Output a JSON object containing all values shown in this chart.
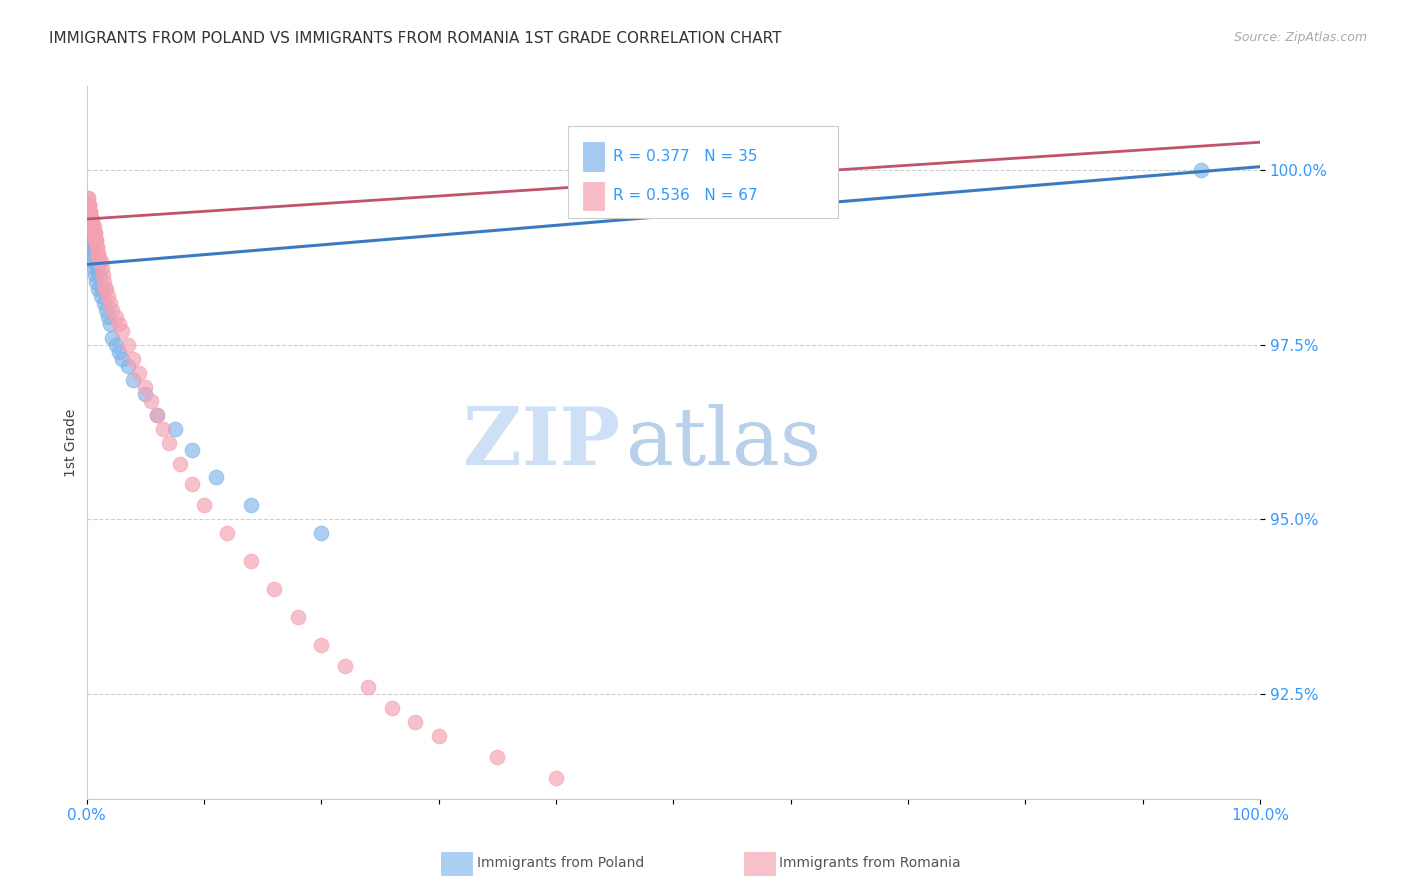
{
  "title": "IMMIGRANTS FROM POLAND VS IMMIGRANTS FROM ROMANIA 1ST GRADE CORRELATION CHART",
  "source": "Source: ZipAtlas.com",
  "ylabel": "1st Grade",
  "y_ticks": [
    92.5,
    95.0,
    97.5,
    100.0
  ],
  "y_tick_labels": [
    "92.5%",
    "95.0%",
    "97.5%",
    "100.0%"
  ],
  "poland_color": "#7eb4ea",
  "romania_color": "#f4a0b0",
  "poland_line_color": "#3a7abf",
  "romania_line_color": "#c0546a",
  "bg_color": "#ffffff",
  "grid_color": "#d0d0d0",
  "title_color": "#333333",
  "axis_tick_color": "#3399ff",
  "watermark_zip": "ZIP",
  "watermark_atlas": "atlas",
  "watermark_color_zip": "#c8dff5",
  "watermark_color_atlas": "#b8cfe8",
  "legend_poland_label": "R = 0.377   N = 35",
  "legend_romania_label": "R = 0.536   N = 67",
  "bottom_legend_poland": "Immigrants from Poland",
  "bottom_legend_romania": "Immigrants from Romania",
  "poland_scatter_x": [
    0.001,
    0.002,
    0.002,
    0.003,
    0.003,
    0.004,
    0.004,
    0.005,
    0.005,
    0.006,
    0.007,
    0.008,
    0.009,
    0.01,
    0.011,
    0.012,
    0.013,
    0.015,
    0.017,
    0.018,
    0.02,
    0.022,
    0.025,
    0.028,
    0.03,
    0.035,
    0.04,
    0.05,
    0.06,
    0.075,
    0.09,
    0.11,
    0.14,
    0.2,
    0.95
  ],
  "poland_scatter_y": [
    99.1,
    99.3,
    99.0,
    98.9,
    99.2,
    98.8,
    99.0,
    98.7,
    98.9,
    98.6,
    98.5,
    98.4,
    98.6,
    98.3,
    98.5,
    98.2,
    98.3,
    98.1,
    98.0,
    97.9,
    97.8,
    97.6,
    97.5,
    97.4,
    97.3,
    97.2,
    97.0,
    96.8,
    96.5,
    96.3,
    96.0,
    95.6,
    95.2,
    94.8,
    100.0
  ],
  "romania_scatter_x": [
    0.001,
    0.001,
    0.001,
    0.001,
    0.001,
    0.002,
    0.002,
    0.002,
    0.002,
    0.003,
    0.003,
    0.003,
    0.003,
    0.004,
    0.004,
    0.004,
    0.005,
    0.005,
    0.005,
    0.006,
    0.006,
    0.006,
    0.007,
    0.007,
    0.007,
    0.008,
    0.008,
    0.009,
    0.009,
    0.01,
    0.01,
    0.011,
    0.012,
    0.013,
    0.014,
    0.015,
    0.016,
    0.017,
    0.018,
    0.02,
    0.022,
    0.025,
    0.028,
    0.03,
    0.035,
    0.04,
    0.045,
    0.05,
    0.055,
    0.06,
    0.065,
    0.07,
    0.08,
    0.09,
    0.1,
    0.12,
    0.14,
    0.16,
    0.18,
    0.2,
    0.22,
    0.24,
    0.26,
    0.28,
    0.3,
    0.35,
    0.4
  ],
  "romania_scatter_y": [
    99.6,
    99.6,
    99.5,
    99.5,
    99.5,
    99.5,
    99.5,
    99.5,
    99.4,
    99.4,
    99.4,
    99.4,
    99.3,
    99.3,
    99.3,
    99.3,
    99.3,
    99.2,
    99.2,
    99.2,
    99.1,
    99.1,
    99.1,
    99.1,
    99.0,
    99.0,
    99.0,
    98.9,
    98.9,
    98.8,
    98.8,
    98.7,
    98.7,
    98.6,
    98.5,
    98.4,
    98.3,
    98.3,
    98.2,
    98.1,
    98.0,
    97.9,
    97.8,
    97.7,
    97.5,
    97.3,
    97.1,
    96.9,
    96.7,
    96.5,
    96.3,
    96.1,
    95.8,
    95.5,
    95.2,
    94.8,
    94.4,
    94.0,
    93.6,
    93.2,
    92.9,
    92.6,
    92.3,
    92.1,
    91.9,
    91.6,
    91.3
  ],
  "xlim": [
    0.0,
    1.0
  ],
  "ylim": [
    91.0,
    101.2
  ]
}
